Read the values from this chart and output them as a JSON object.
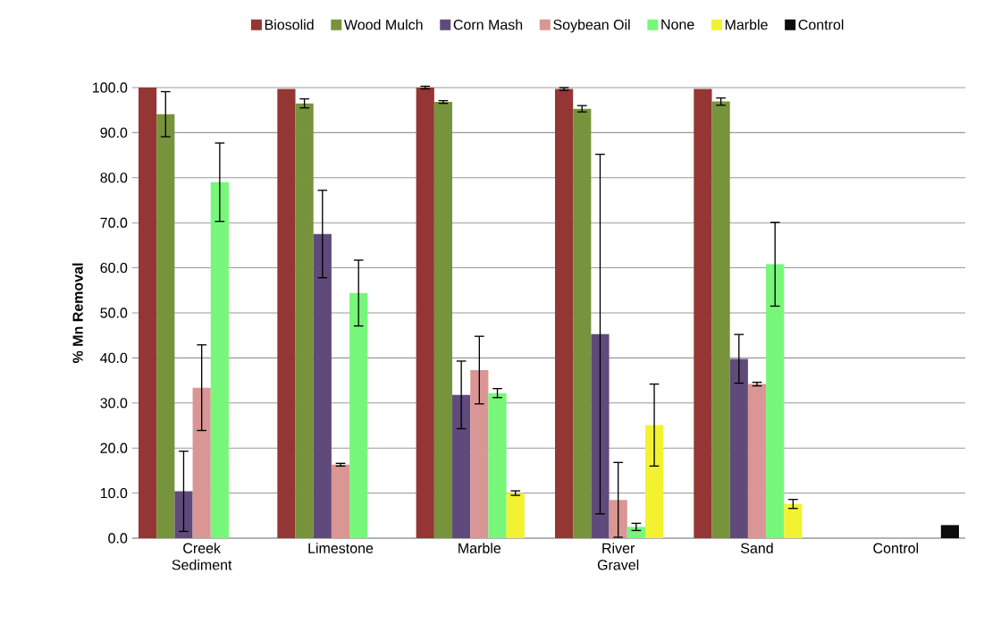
{
  "chart_data": {
    "type": "bar",
    "ylabel": "% Mn Removal",
    "categories": [
      "Creek Sediment",
      "Limestone",
      "Marble",
      "River Gravel",
      "Sand",
      "Control"
    ],
    "series": [
      {
        "name": "Biosolid",
        "color": "#943634",
        "values": [
          100.0,
          99.7,
          100.0,
          99.7,
          99.7,
          null
        ],
        "errors": [
          null,
          null,
          0.3,
          0.3,
          null,
          null
        ]
      },
      {
        "name": "Wood Mulch",
        "color": "#77933c",
        "values": [
          94.1,
          96.5,
          96.8,
          95.3,
          96.9,
          null
        ],
        "errors": [
          5.0,
          1.0,
          0.3,
          0.7,
          0.8,
          null
        ]
      },
      {
        "name": "Corn Mash",
        "color": "#604a7b",
        "values": [
          10.4,
          67.5,
          31.8,
          45.3,
          39.8,
          null
        ],
        "errors": [
          8.9,
          9.7,
          7.5,
          39.9,
          5.4,
          null
        ]
      },
      {
        "name": "Soybean Oil",
        "color": "#d99694",
        "values": [
          33.4,
          16.3,
          37.3,
          8.5,
          34.2,
          null
        ],
        "errors": [
          9.5,
          0.3,
          7.5,
          8.3,
          0.4,
          null
        ]
      },
      {
        "name": "None",
        "color": "#77f77a",
        "values": [
          79.0,
          54.4,
          32.2,
          2.5,
          60.8,
          null
        ],
        "errors": [
          8.7,
          7.3,
          1.0,
          0.8,
          9.3,
          null
        ]
      },
      {
        "name": "Marble",
        "color": "#f2f230",
        "values": [
          null,
          null,
          10.0,
          25.1,
          7.6,
          null
        ],
        "errors": [
          null,
          null,
          0.5,
          9.1,
          1.0,
          null
        ]
      },
      {
        "name": "Control",
        "color": "#0c0c0c",
        "values": [
          null,
          null,
          null,
          null,
          null,
          2.9
        ]
      }
    ],
    "ylim": [
      0,
      100
    ],
    "yticks": [
      {
        "value": 0,
        "label": "0.0"
      },
      {
        "value": 10,
        "label": "10.0"
      },
      {
        "value": 20,
        "label": "20.0"
      },
      {
        "value": 30,
        "label": "30.0"
      },
      {
        "value": 40,
        "label": "40.0"
      },
      {
        "value": 50,
        "label": "50.0"
      },
      {
        "value": 60,
        "label": "60.0"
      },
      {
        "value": 70,
        "label": "70.0"
      },
      {
        "value": 80,
        "label": "80.0"
      },
      {
        "value": 90,
        "label": "90.0"
      },
      {
        "value": 100,
        "label": "100.0"
      }
    ],
    "grid": "y",
    "legend": "top"
  }
}
